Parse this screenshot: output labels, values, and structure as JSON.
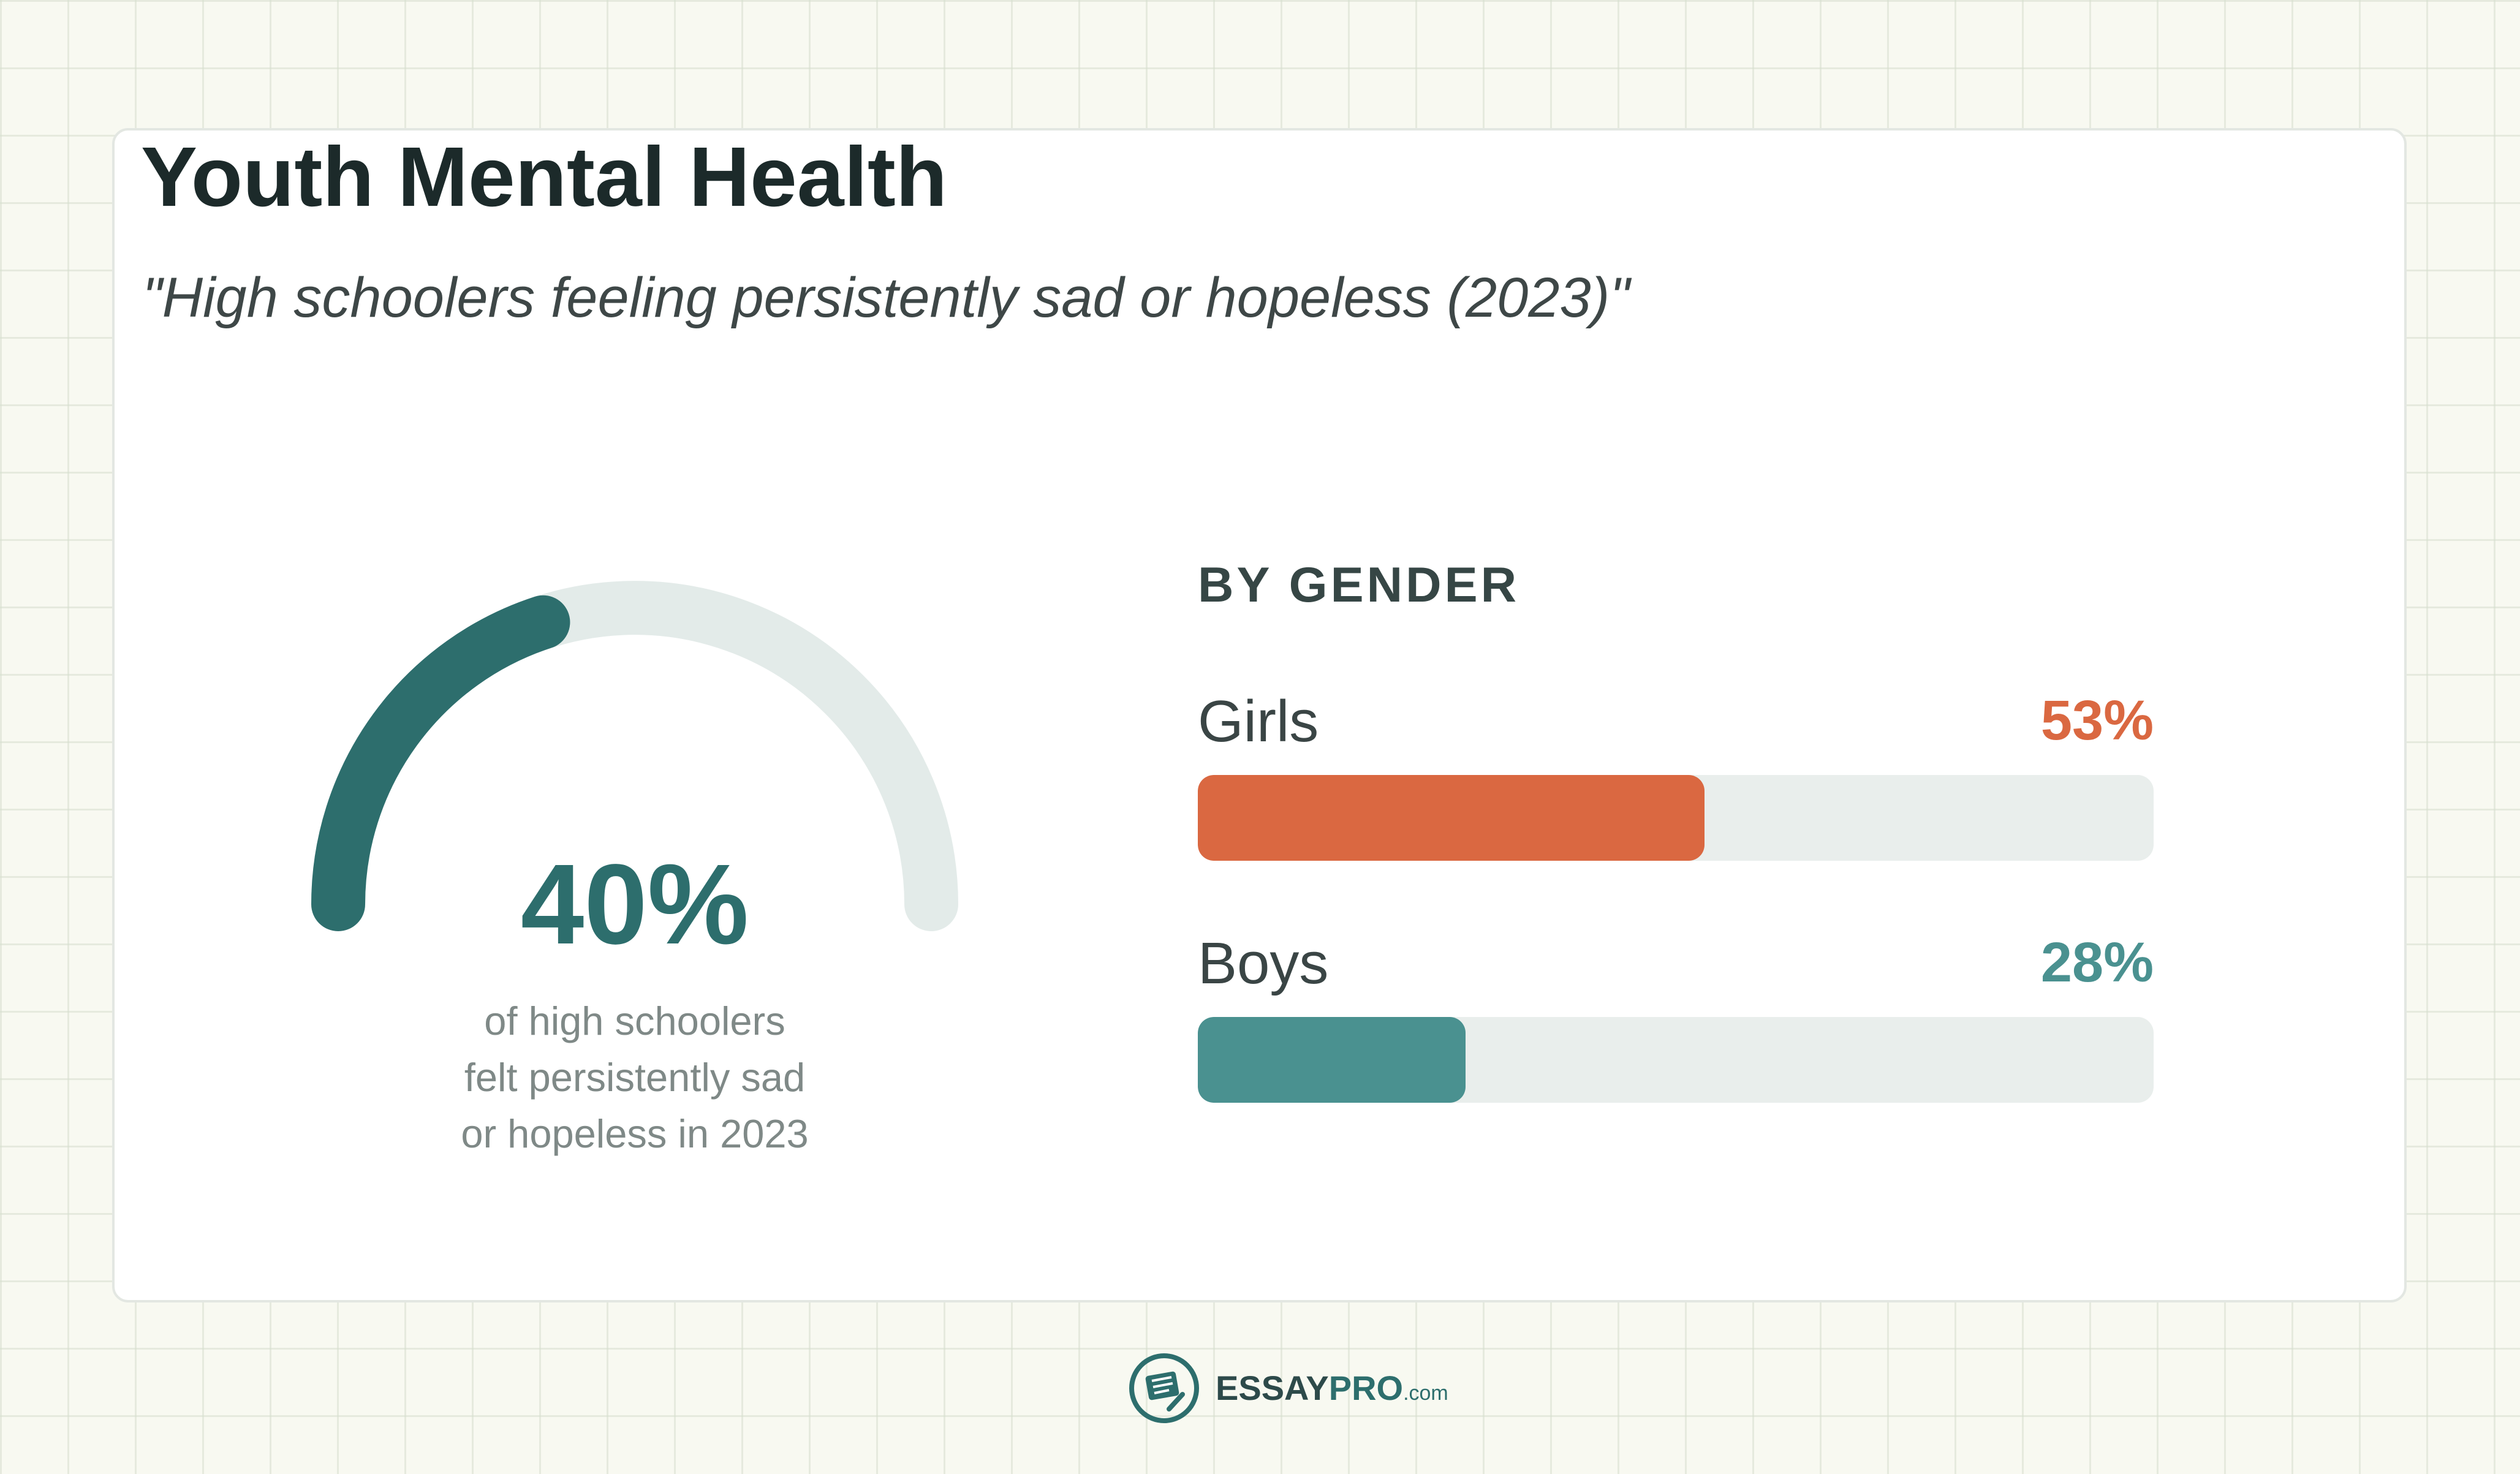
{
  "title": "Youth Mental Health",
  "subtitle": "\"High schoolers feeling persistently sad or hopeless (2023)\"",
  "colors": {
    "gauge_fill": "#2d6e6d",
    "gauge_track": "#e3ebe9",
    "girls": "#da6841",
    "boys": "#4a9190",
    "bar_track": "#e9eeec"
  },
  "chart_data": [
    {
      "type": "gauge",
      "value": 40,
      "max": 100,
      "value_label": "40%",
      "caption_lines": [
        "of high schoolers",
        "felt persistently sad",
        "or hopeless in 2023"
      ]
    },
    {
      "type": "bar",
      "orientation": "horizontal",
      "title": "BY GENDER",
      "categories": [
        "Girls",
        "Boys"
      ],
      "values": [
        53,
        28
      ],
      "value_labels": [
        "53%",
        "28%"
      ],
      "xlim": [
        0,
        100
      ]
    }
  ],
  "footer": {
    "logo_icon": "notebook-pen-icon",
    "brand_part1": "ESSAY",
    "brand_part2": "PRO",
    "brand_part3": ".com"
  }
}
